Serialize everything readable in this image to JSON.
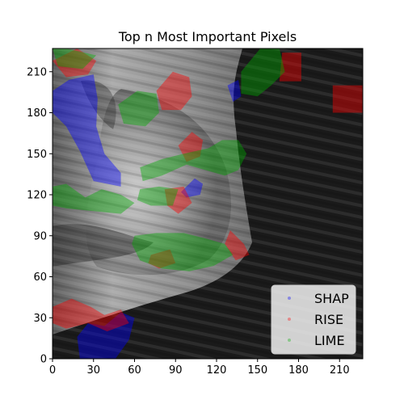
{
  "chart_data": {
    "type": "heatmap",
    "title": "Top n Most Important Pixels",
    "xlabel": "",
    "ylabel": "",
    "xlim": [
      0,
      227
    ],
    "ylim": [
      0,
      227
    ],
    "x_ticks": [
      0,
      30,
      60,
      90,
      120,
      150,
      180,
      210
    ],
    "y_ticks": [
      0,
      30,
      60,
      90,
      120,
      150,
      180,
      210
    ],
    "grid": false,
    "legend_placement": "lower-right",
    "background": "grayscale X-ray image with a bright curved tissue region on the left and dark background on the right",
    "series": [
      {
        "name": "SHAP",
        "color": "#0000ff",
        "regions": [
          {
            "points": [
              [
                0,
                196
              ],
              [
                12,
                204
              ],
              [
                30,
                208
              ],
              [
                33,
                190
              ],
              [
                32,
                170
              ],
              [
                38,
                150
              ],
              [
                50,
                136
              ],
              [
                50,
                126
              ],
              [
                30,
                130
              ],
              [
                20,
                152
              ],
              [
                10,
                170
              ],
              [
                0,
                180
              ]
            ]
          },
          {
            "points": [
              [
                38,
                24
              ],
              [
                50,
                34
              ],
              [
                60,
                30
              ],
              [
                56,
                14
              ],
              [
                46,
                0
              ],
              [
                20,
                0
              ],
              [
                18,
                16
              ],
              [
                26,
                26
              ]
            ]
          },
          {
            "points": [
              [
                94,
                122
              ],
              [
                104,
                132
              ],
              [
                110,
                128
              ],
              [
                108,
                120
              ],
              [
                98,
                118
              ]
            ]
          },
          {
            "points": [
              [
                128,
                200
              ],
              [
                136,
                204
              ],
              [
                138,
                192
              ],
              [
                132,
                188
              ]
            ]
          }
        ]
      },
      {
        "name": "RISE",
        "color": "#ff0000",
        "regions": [
          {
            "points": [
              [
                168,
                224
              ],
              [
                182,
                224
              ],
              [
                182,
                203
              ],
              [
                166,
                203
              ]
            ]
          },
          {
            "points": [
              [
                205,
                200
              ],
              [
                227,
                200
              ],
              [
                227,
                180
              ],
              [
                205,
                180
              ]
            ]
          },
          {
            "points": [
              [
                76,
                196
              ],
              [
                88,
                210
              ],
              [
                100,
                206
              ],
              [
                102,
                192
              ],
              [
                94,
                182
              ],
              [
                80,
                182
              ]
            ]
          },
          {
            "points": [
              [
                92,
                156
              ],
              [
                102,
                166
              ],
              [
                110,
                160
              ],
              [
                108,
                148
              ],
              [
                98,
                144
              ]
            ]
          },
          {
            "points": [
              [
                0,
                38
              ],
              [
                14,
                44
              ],
              [
                28,
                38
              ],
              [
                38,
                32
              ],
              [
                50,
                36
              ],
              [
                56,
                26
              ],
              [
                40,
                20
              ],
              [
                26,
                26
              ],
              [
                10,
                22
              ],
              [
                0,
                26
              ]
            ]
          },
          {
            "points": [
              [
                82,
                124
              ],
              [
                96,
                126
              ],
              [
                102,
                114
              ],
              [
                92,
                106
              ],
              [
                84,
                112
              ]
            ]
          },
          {
            "points": [
              [
                130,
                94
              ],
              [
                140,
                84
              ],
              [
                144,
                76
              ],
              [
                134,
                72
              ],
              [
                126,
                84
              ]
            ]
          },
          {
            "points": [
              [
                72,
                76
              ],
              [
                86,
                80
              ],
              [
                90,
                70
              ],
              [
                78,
                66
              ],
              [
                70,
                70
              ]
            ]
          },
          {
            "points": [
              [
                0,
                218
              ],
              [
                18,
                227
              ],
              [
                32,
                218
              ],
              [
                26,
                208
              ],
              [
                10,
                206
              ]
            ]
          }
        ]
      },
      {
        "name": "LIME",
        "color": "#00aa00",
        "regions": [
          {
            "points": [
              [
                48,
                186
              ],
              [
                62,
                196
              ],
              [
                76,
                194
              ],
              [
                78,
                180
              ],
              [
                68,
                170
              ],
              [
                52,
                172
              ]
            ]
          },
          {
            "points": [
              [
                0,
                126
              ],
              [
                10,
                128
              ],
              [
                24,
                118
              ],
              [
                36,
                124
              ],
              [
                50,
                120
              ],
              [
                60,
                114
              ],
              [
                50,
                106
              ],
              [
                30,
                108
              ],
              [
                10,
                110
              ],
              [
                0,
                112
              ]
            ]
          },
          {
            "points": [
              [
                64,
                140
              ],
              [
                80,
                146
              ],
              [
                96,
                150
              ],
              [
                114,
                154
              ],
              [
                124,
                160
              ],
              [
                136,
                160
              ],
              [
                142,
                150
              ],
              [
                136,
                138
              ],
              [
                126,
                134
              ],
              [
                112,
                138
              ],
              [
                98,
                142
              ],
              [
                80,
                134
              ],
              [
                66,
                130
              ]
            ]
          },
          {
            "points": [
              [
                64,
                124
              ],
              [
                78,
                126
              ],
              [
                92,
                124
              ],
              [
                88,
                112
              ],
              [
                72,
                112
              ],
              [
                62,
                116
              ]
            ]
          },
          {
            "points": [
              [
                60,
                90
              ],
              [
                76,
                92
              ],
              [
                96,
                92
              ],
              [
                112,
                88
              ],
              [
                126,
                84
              ],
              [
                132,
                76
              ],
              [
                118,
                68
              ],
              [
                100,
                64
              ],
              [
                80,
                66
              ],
              [
                64,
                72
              ],
              [
                58,
                84
              ]
            ]
          },
          {
            "points": [
              [
                138,
                210
              ],
              [
                152,
                227
              ],
              [
                166,
                227
              ],
              [
                170,
                210
              ],
              [
                160,
                200
              ],
              [
                150,
                192
              ],
              [
                138,
                194
              ]
            ]
          },
          {
            "points": [
              [
                0,
                227
              ],
              [
                10,
                227
              ],
              [
                32,
                222
              ],
              [
                22,
                212
              ],
              [
                4,
                214
              ]
            ]
          }
        ]
      }
    ]
  }
}
